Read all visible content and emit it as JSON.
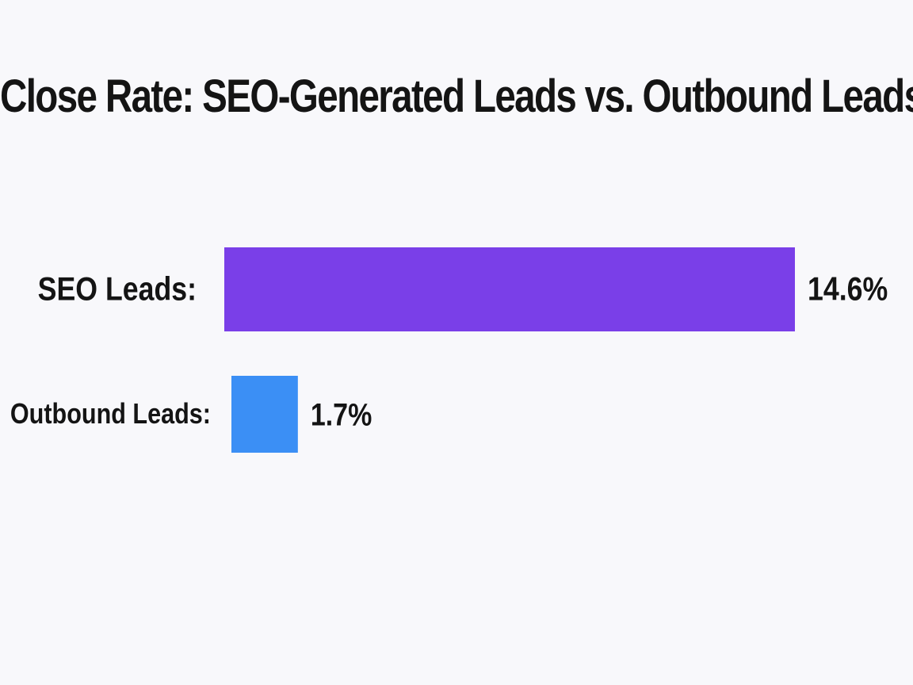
{
  "chart_data": {
    "type": "bar",
    "orientation": "horizontal",
    "title": "Close Rate: SEO-Generated Leads vs. Outbound Leads",
    "categories": [
      "SEO Leads:",
      "Outbound Leads:"
    ],
    "values": [
      14.6,
      1.7
    ],
    "value_labels": [
      "14.6%",
      "1.7%"
    ],
    "colors": [
      "#7a3fe8",
      "#3b8ff5"
    ],
    "xlabel": "",
    "ylabel": "",
    "grid": false,
    "legend": "none"
  }
}
